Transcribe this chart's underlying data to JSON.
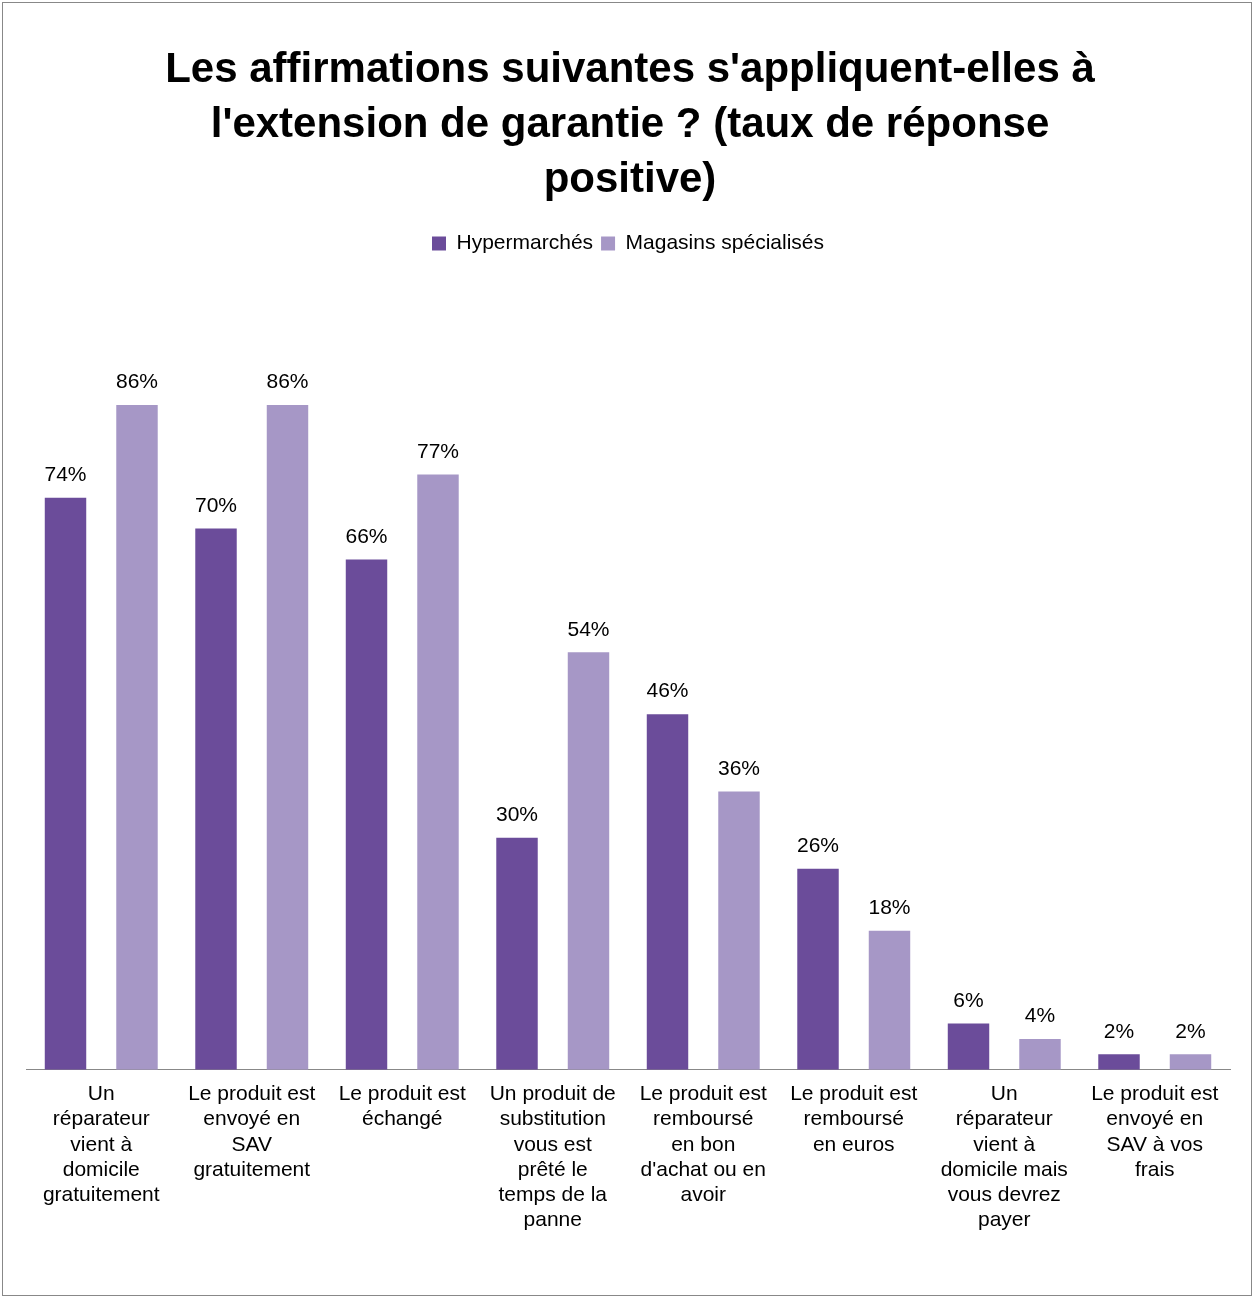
{
  "chart_data": {
    "type": "bar",
    "title": "Les affirmations suivantes s'appliquent-elles à l'extension de garantie ? (taux de réponse positive)",
    "categories": [
      "Un réparateur vient à domicile gratuitement",
      "Le produit est envoyé en SAV gratuitement",
      "Le produit est échangé",
      "Un produit de substitution vous est prêté le temps de la panne",
      "Le produit est remboursé en bon d'achat ou en avoir",
      "Le produit est remboursé en euros",
      "Un réparateur vient à domicile mais vous devrez payer",
      "Le produit est envoyé en SAV à vos frais"
    ],
    "series": [
      {
        "name": "Hypermarchés",
        "color": "#6b4c9a",
        "values": [
          74,
          70,
          66,
          30,
          46,
          26,
          6,
          2
        ],
        "value_labels": [
          "74%",
          "70%",
          "66%",
          "30%",
          "46%",
          "26%",
          "6%",
          "2%"
        ]
      },
      {
        "name": "Magasins spécialisés",
        "color": "#a697c6",
        "values": [
          86,
          86,
          77,
          54,
          36,
          18,
          4,
          2
        ],
        "value_labels": [
          "86%",
          "86%",
          "77%",
          "54%",
          "36%",
          "18%",
          "4%",
          "2%"
        ]
      }
    ],
    "legend": "top",
    "grid": false,
    "tick_labels": "x"
  }
}
